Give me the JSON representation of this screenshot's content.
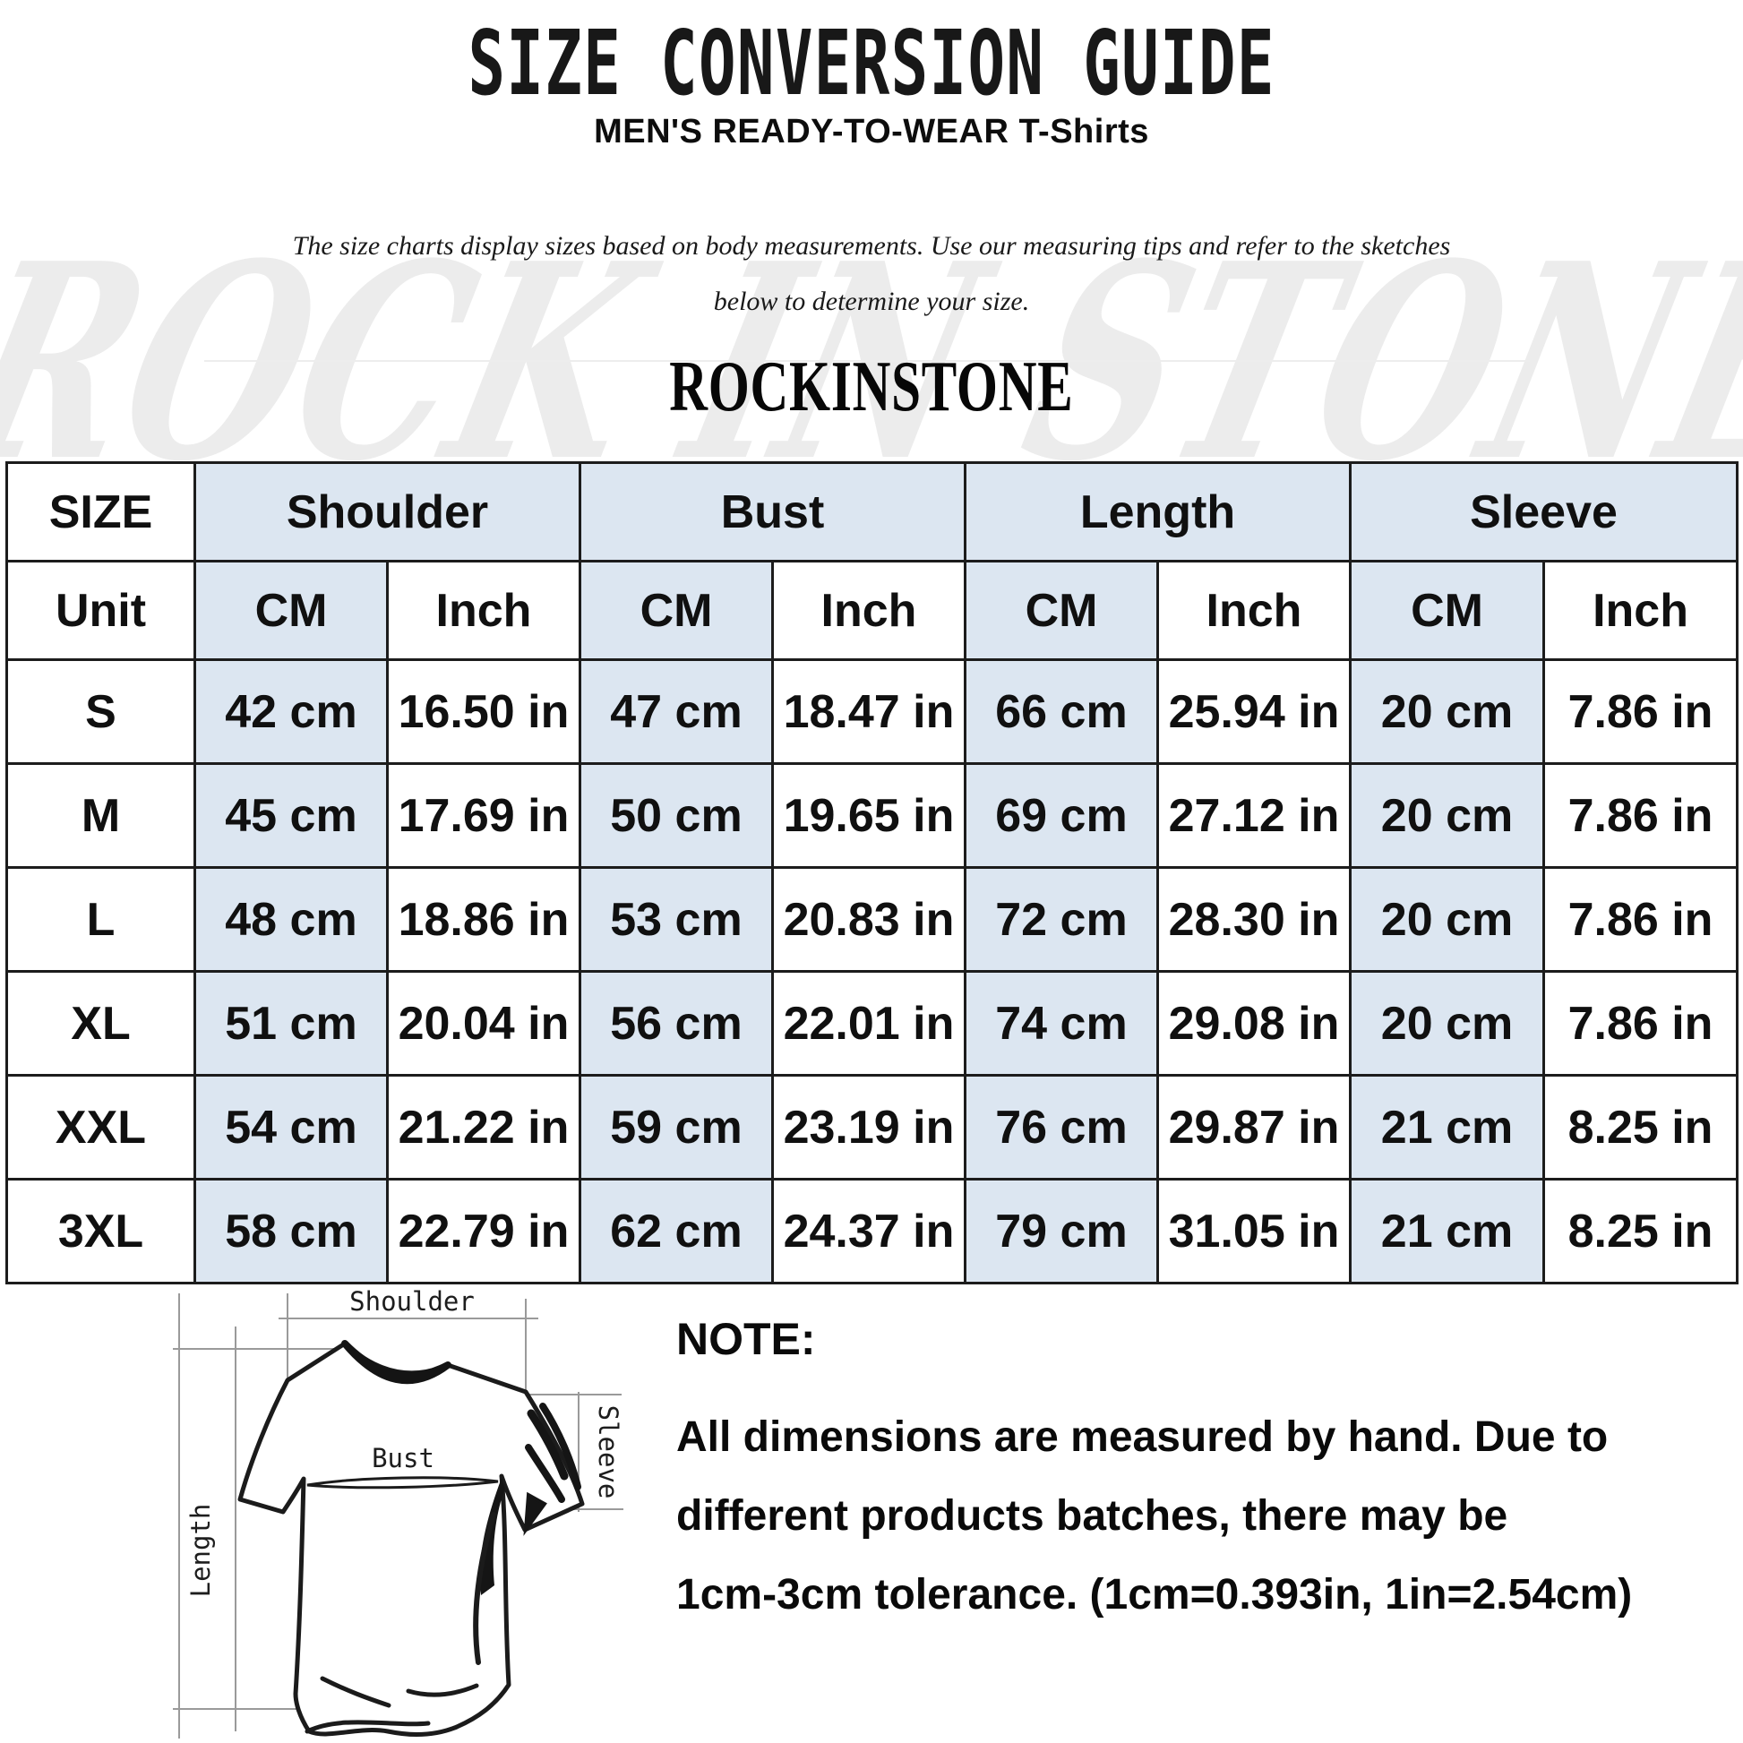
{
  "header": {
    "title": "SIZE CONVERSION GUIDE",
    "subtitle": "MEN'S READY-TO-WEAR T-Shirts",
    "description_line1": "The size charts display sizes based on body measurements. Use our measuring tips and refer to the sketches",
    "description_line2": "below to determine your size.",
    "brand": "ROCKINSTONE",
    "watermark": "ROCK IN STONE"
  },
  "chart_data": {
    "type": "table",
    "title": "SIZE CONVERSION GUIDE",
    "column_groups": [
      "SIZE",
      "Shoulder",
      "Bust",
      "Length",
      "Sleeve"
    ],
    "unit_row": {
      "label": "Unit",
      "units": [
        "CM",
        "Inch",
        "CM",
        "Inch",
        "CM",
        "Inch",
        "CM",
        "Inch"
      ]
    },
    "rows": [
      {
        "size": "S",
        "cells": [
          "42 cm",
          "16.50 in",
          "47 cm",
          "18.47 in",
          "66 cm",
          "25.94 in",
          "20 cm",
          "7.86 in"
        ]
      },
      {
        "size": "M",
        "cells": [
          "45 cm",
          "17.69 in",
          "50 cm",
          "19.65 in",
          "69 cm",
          "27.12 in",
          "20 cm",
          "7.86 in"
        ]
      },
      {
        "size": "L",
        "cells": [
          "48 cm",
          "18.86 in",
          "53 cm",
          "20.83 in",
          "72 cm",
          "28.30 in",
          "20 cm",
          "7.86 in"
        ]
      },
      {
        "size": "XL",
        "cells": [
          "51 cm",
          "20.04 in",
          "56 cm",
          "22.01 in",
          "74 cm",
          "29.08 in",
          "20 cm",
          "7.86 in"
        ]
      },
      {
        "size": "XXL",
        "cells": [
          "54 cm",
          "21.22 in",
          "59 cm",
          "23.19 in",
          "76 cm",
          "29.87 in",
          "21 cm",
          "8.25 in"
        ]
      },
      {
        "size": "3XL",
        "cells": [
          "58 cm",
          "22.79 in",
          "62 cm",
          "24.37 in",
          "79 cm",
          "31.05 in",
          "21 cm",
          "8.25 in"
        ]
      }
    ]
  },
  "diagram": {
    "labels": {
      "shoulder": "Shoulder",
      "bust": "Bust",
      "sleeve": "Sleeve",
      "length": "Length"
    }
  },
  "note": {
    "heading": "NOTE:",
    "lines": [
      "All dimensions are measured by hand. Due to",
      "different products batches, there may be",
      "1cm-3cm tolerance. (1cm=0.393in, 1in=2.54cm)"
    ]
  },
  "colors": {
    "header_blue": "#dce6f1",
    "table_border": "#1c1c1c",
    "watermark_gray": "#ececec",
    "text_black": "#101010"
  }
}
